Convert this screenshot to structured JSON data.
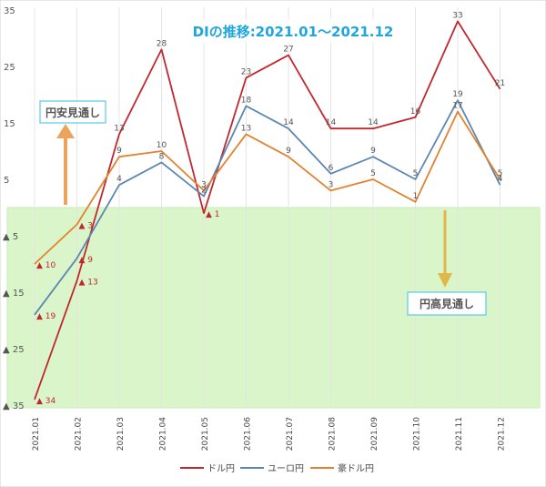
{
  "chart_data": {
    "type": "line",
    "title": "DIの推移:2021.01〜2021.12",
    "categories": [
      "2021.01",
      "2021.02",
      "2021.03",
      "2021.04",
      "2021.05",
      "2021.06",
      "2021.07",
      "2021.08",
      "2021.09",
      "2021.10",
      "2021.11",
      "2021.12"
    ],
    "y_ticks_positive": [
      "35",
      "25",
      "15",
      "5"
    ],
    "y_ticks_negative": [
      "▲ 5",
      "▲ 15",
      "▲ 25",
      "▲ 35"
    ],
    "ylim": [
      -35,
      35
    ],
    "grid": "vertical",
    "legend_position": "bottom",
    "series": [
      {
        "name": "ドル円",
        "color": "#c0282d",
        "values": [
          -34,
          -13,
          13,
          28,
          -1,
          23,
          27,
          14,
          14,
          16,
          33,
          21
        ],
        "labels": [
          "▲ 34",
          "▲ 13",
          "13",
          "28",
          "▲ 1",
          "23",
          "27",
          "14",
          "14",
          "16",
          "33",
          "21"
        ]
      },
      {
        "name": "ユーロ円",
        "color": "#5b88b2",
        "values": [
          -19,
          -9,
          4,
          8,
          2,
          18,
          14,
          6,
          9,
          5,
          19,
          4
        ],
        "labels": [
          "▲ 19",
          "▲ 9",
          "4",
          "8",
          "2",
          "18",
          "14",
          "6",
          "9",
          "5",
          "19",
          "4"
        ]
      },
      {
        "name": "豪ドル円",
        "color": "#e3822f",
        "values": [
          -10,
          -3,
          9,
          10,
          3,
          13,
          9,
          3,
          5,
          1,
          17,
          5
        ],
        "labels": [
          "▲ 10",
          "▲ 3",
          "9",
          "10",
          "3",
          "13",
          "9",
          "3",
          "5",
          "1",
          "17",
          "5"
        ]
      }
    ],
    "annotations": {
      "weak_yen": "円安見通し",
      "strong_yen": "円高見通し"
    },
    "colors": {
      "positive_region": "#ffffff",
      "negative_region": "#daf5c9",
      "title_text": "#1fa6dc",
      "arrow": "#eea35c",
      "annotation_border": "#5ac8e8"
    }
  }
}
